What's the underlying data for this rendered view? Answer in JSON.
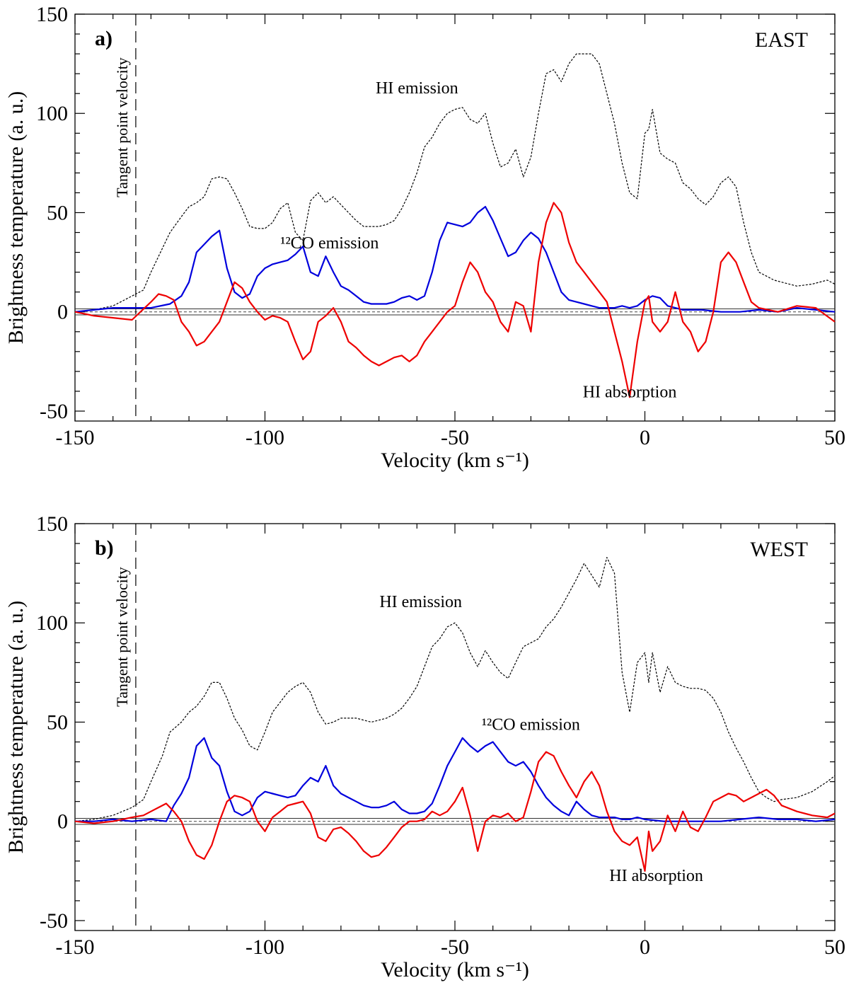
{
  "chart_data": [
    {
      "type": "line",
      "panel": "a)",
      "region": "EAST",
      "xlabel": "Velocity (km s⁻¹)",
      "ylabel": "Brightness temperature (a. u.)",
      "xlim": [
        -150,
        50
      ],
      "ylim": [
        -55,
        150
      ],
      "xticks": [
        -150,
        -100,
        -50,
        0,
        50
      ],
      "yticks": [
        -50,
        0,
        50,
        100,
        150
      ],
      "tangent_velocity": -134,
      "tangent_label": "Tangent point velocity",
      "noise_band": 1.5,
      "series": [
        {
          "name": "HI emission",
          "color": "#000000",
          "style": "dotted",
          "label_at": [
            -60,
            110
          ],
          "x": [
            -150,
            -145,
            -140,
            -135,
            -132,
            -130,
            -127,
            -125,
            -122,
            -120,
            -118,
            -116,
            -114,
            -112,
            -110,
            -108,
            -106,
            -104,
            -102,
            -100,
            -98,
            -96,
            -94,
            -92,
            -90,
            -88,
            -86,
            -84,
            -82,
            -80,
            -78,
            -76,
            -74,
            -72,
            -70,
            -68,
            -66,
            -64,
            -62,
            -60,
            -58,
            -56,
            -54,
            -52,
            -50,
            -48,
            -46,
            -44,
            -42,
            -40,
            -38,
            -36,
            -34,
            -32,
            -30,
            -28,
            -26,
            -24,
            -22,
            -20,
            -18,
            -16,
            -14,
            -12,
            -10,
            -8,
            -6,
            -4,
            -2,
            0,
            1,
            2,
            4,
            6,
            8,
            10,
            12,
            14,
            16,
            18,
            20,
            22,
            24,
            26,
            28,
            30,
            32,
            34,
            36,
            40,
            44,
            48,
            50
          ],
          "y": [
            0,
            1,
            3,
            8,
            11,
            20,
            32,
            40,
            48,
            53,
            55,
            58,
            67,
            68,
            67,
            60,
            52,
            43,
            42,
            42,
            45,
            52,
            55,
            40,
            36,
            56,
            60,
            55,
            58,
            54,
            50,
            46,
            43,
            43,
            43,
            44,
            46,
            52,
            60,
            70,
            83,
            88,
            95,
            100,
            102,
            103,
            97,
            95,
            100,
            85,
            73,
            75,
            82,
            68,
            78,
            100,
            120,
            122,
            116,
            125,
            130,
            130,
            130,
            125,
            110,
            95,
            75,
            60,
            57,
            90,
            92,
            102,
            80,
            77,
            75,
            65,
            62,
            57,
            54,
            58,
            65,
            68,
            63,
            45,
            30,
            20,
            18,
            16,
            15,
            13,
            14,
            16,
            14
          ]
        },
        {
          "name": "¹²CO emission",
          "color": "#0000dd",
          "style": "solid",
          "label_at": [
            -83,
            32
          ],
          "x": [
            -150,
            -145,
            -140,
            -135,
            -130,
            -125,
            -122,
            -120,
            -118,
            -116,
            -114,
            -112,
            -110,
            -108,
            -106,
            -104,
            -102,
            -100,
            -98,
            -96,
            -94,
            -92,
            -90,
            -88,
            -86,
            -84,
            -82,
            -80,
            -78,
            -76,
            -74,
            -72,
            -70,
            -68,
            -66,
            -64,
            -62,
            -60,
            -58,
            -56,
            -54,
            -52,
            -50,
            -48,
            -46,
            -44,
            -42,
            -40,
            -38,
            -36,
            -34,
            -32,
            -30,
            -28,
            -26,
            -24,
            -22,
            -20,
            -18,
            -16,
            -14,
            -12,
            -10,
            -8,
            -6,
            -4,
            -2,
            0,
            2,
            4,
            6,
            8,
            10,
            15,
            20,
            25,
            30,
            35,
            40,
            45,
            50
          ],
          "y": [
            0,
            1,
            2,
            2,
            2,
            4,
            8,
            15,
            30,
            34,
            38,
            41,
            22,
            10,
            7,
            9,
            18,
            22,
            24,
            25,
            26,
            29,
            33,
            20,
            18,
            28,
            20,
            13,
            11,
            8,
            5,
            4,
            4,
            4,
            5,
            7,
            8,
            6,
            8,
            20,
            36,
            45,
            44,
            43,
            45,
            50,
            53,
            46,
            37,
            28,
            30,
            36,
            40,
            37,
            30,
            20,
            10,
            6,
            5,
            4,
            3,
            2,
            2,
            2,
            3,
            2,
            3,
            6,
            8,
            7,
            3,
            2,
            1,
            1,
            0,
            0,
            1,
            0,
            2,
            1,
            0
          ]
        },
        {
          "name": "HI absorption",
          "color": "#ee0000",
          "style": "solid",
          "label_at": [
            -4,
            -43
          ],
          "x": [
            -150,
            -145,
            -140,
            -135,
            -130,
            -128,
            -126,
            -124,
            -122,
            -120,
            -118,
            -116,
            -114,
            -112,
            -110,
            -108,
            -106,
            -104,
            -102,
            -100,
            -98,
            -96,
            -94,
            -92,
            -90,
            -88,
            -86,
            -84,
            -82,
            -80,
            -78,
            -76,
            -74,
            -72,
            -70,
            -68,
            -66,
            -64,
            -62,
            -60,
            -58,
            -56,
            -54,
            -52,
            -50,
            -48,
            -46,
            -44,
            -42,
            -40,
            -38,
            -36,
            -34,
            -32,
            -30,
            -28,
            -26,
            -24,
            -22,
            -20,
            -18,
            -16,
            -14,
            -12,
            -10,
            -8,
            -6,
            -4,
            -2,
            0,
            1,
            2,
            4,
            6,
            8,
            10,
            12,
            14,
            16,
            18,
            20,
            22,
            24,
            26,
            28,
            30,
            35,
            40,
            45,
            50
          ],
          "y": [
            0,
            -2,
            -3,
            -4,
            5,
            9,
            8,
            6,
            -5,
            -10,
            -17,
            -15,
            -10,
            -5,
            5,
            15,
            12,
            5,
            0,
            -4,
            -2,
            -3,
            -5,
            -15,
            -24,
            -20,
            -5,
            -2,
            2,
            -5,
            -15,
            -18,
            -22,
            -25,
            -27,
            -25,
            -23,
            -22,
            -25,
            -22,
            -15,
            -10,
            -5,
            0,
            3,
            15,
            25,
            20,
            10,
            5,
            -5,
            -10,
            5,
            3,
            -10,
            25,
            45,
            55,
            50,
            35,
            25,
            20,
            15,
            10,
            5,
            -10,
            -25,
            -43,
            -15,
            5,
            8,
            -5,
            -10,
            -5,
            10,
            -5,
            -10,
            -20,
            -15,
            0,
            25,
            30,
            25,
            15,
            5,
            2,
            0,
            3,
            2,
            -5
          ]
        }
      ]
    },
    {
      "type": "line",
      "panel": "b)",
      "region": "WEST",
      "xlabel": "Velocity (km s⁻¹)",
      "ylabel": "Brightness temperature (a. u.)",
      "xlim": [
        -150,
        50
      ],
      "ylim": [
        -55,
        150
      ],
      "xticks": [
        -150,
        -100,
        -50,
        0,
        50
      ],
      "yticks": [
        -50,
        0,
        50,
        100,
        150
      ],
      "tangent_velocity": -134,
      "tangent_label": "Tangent point velocity",
      "noise_band": 1.5,
      "series": [
        {
          "name": "HI emission",
          "color": "#000000",
          "style": "dotted",
          "label_at": [
            -59,
            108
          ],
          "x": [
            -150,
            -145,
            -140,
            -135,
            -132,
            -130,
            -127,
            -125,
            -122,
            -120,
            -118,
            -116,
            -114,
            -112,
            -110,
            -108,
            -106,
            -104,
            -102,
            -100,
            -98,
            -96,
            -94,
            -92,
            -90,
            -88,
            -86,
            -84,
            -82,
            -80,
            -78,
            -76,
            -74,
            -72,
            -70,
            -68,
            -66,
            -64,
            -62,
            -60,
            -58,
            -56,
            -54,
            -52,
            -50,
            -48,
            -46,
            -44,
            -42,
            -40,
            -38,
            -36,
            -34,
            -32,
            -30,
            -28,
            -26,
            -24,
            -22,
            -20,
            -18,
            -16,
            -14,
            -12,
            -10,
            -8,
            -6,
            -4,
            -2,
            0,
            1,
            2,
            4,
            6,
            8,
            10,
            12,
            14,
            16,
            18,
            20,
            22,
            24,
            26,
            28,
            30,
            32,
            34,
            36,
            40,
            44,
            48,
            50
          ],
          "y": [
            0,
            1,
            3,
            7,
            11,
            20,
            33,
            45,
            50,
            55,
            58,
            63,
            70,
            70,
            62,
            52,
            46,
            38,
            36,
            45,
            55,
            60,
            65,
            68,
            70,
            65,
            55,
            49,
            50,
            52,
            52,
            52,
            51,
            50,
            51,
            52,
            54,
            57,
            62,
            68,
            78,
            88,
            92,
            98,
            100,
            95,
            85,
            78,
            86,
            80,
            75,
            72,
            80,
            88,
            90,
            92,
            98,
            102,
            108,
            115,
            122,
            130,
            124,
            118,
            133,
            125,
            75,
            55,
            80,
            85,
            70,
            85,
            65,
            78,
            70,
            68,
            67,
            67,
            66,
            62,
            55,
            45,
            37,
            30,
            22,
            15,
            12,
            10,
            11,
            12,
            15,
            20,
            23
          ]
        },
        {
          "name": "¹²CO emission",
          "color": "#0000dd",
          "style": "solid",
          "label_at": [
            -30,
            46
          ],
          "x": [
            -150,
            -145,
            -140,
            -135,
            -130,
            -126,
            -124,
            -122,
            -120,
            -118,
            -116,
            -114,
            -112,
            -110,
            -108,
            -106,
            -104,
            -102,
            -100,
            -98,
            -96,
            -94,
            -92,
            -90,
            -88,
            -86,
            -84,
            -82,
            -80,
            -78,
            -76,
            -74,
            -72,
            -70,
            -68,
            -66,
            -64,
            -62,
            -60,
            -58,
            -56,
            -54,
            -52,
            -50,
            -48,
            -46,
            -44,
            -42,
            -40,
            -38,
            -36,
            -34,
            -32,
            -30,
            -28,
            -26,
            -24,
            -22,
            -20,
            -18,
            -16,
            -14,
            -12,
            -10,
            -8,
            -6,
            -4,
            -2,
            0,
            5,
            10,
            15,
            20,
            25,
            30,
            35,
            40,
            45,
            50
          ],
          "y": [
            0,
            0,
            1,
            0,
            1,
            0,
            8,
            14,
            22,
            38,
            42,
            32,
            28,
            15,
            5,
            3,
            5,
            12,
            15,
            14,
            13,
            12,
            13,
            18,
            22,
            20,
            28,
            18,
            14,
            12,
            10,
            8,
            7,
            7,
            8,
            10,
            6,
            4,
            4,
            5,
            9,
            18,
            28,
            35,
            42,
            38,
            35,
            38,
            40,
            35,
            30,
            28,
            30,
            25,
            18,
            12,
            8,
            5,
            3,
            10,
            6,
            3,
            2,
            2,
            2,
            1,
            1,
            2,
            1,
            0,
            0,
            0,
            0,
            1,
            2,
            1,
            1,
            0,
            1
          ]
        },
        {
          "name": "HI absorption",
          "color": "#ee0000",
          "style": "solid",
          "label_at": [
            3,
            -30
          ],
          "x": [
            -150,
            -145,
            -140,
            -135,
            -132,
            -130,
            -128,
            -126,
            -124,
            -122,
            -120,
            -118,
            -116,
            -114,
            -112,
            -110,
            -108,
            -106,
            -104,
            -102,
            -100,
            -98,
            -96,
            -94,
            -92,
            -90,
            -88,
            -86,
            -84,
            -82,
            -80,
            -78,
            -76,
            -74,
            -72,
            -70,
            -68,
            -66,
            -64,
            -62,
            -60,
            -58,
            -56,
            -54,
            -52,
            -50,
            -48,
            -46,
            -44,
            -42,
            -40,
            -38,
            -36,
            -34,
            -32,
            -30,
            -28,
            -26,
            -24,
            -22,
            -20,
            -18,
            -16,
            -14,
            -12,
            -10,
            -8,
            -6,
            -4,
            -2,
            0,
            1,
            2,
            4,
            6,
            8,
            10,
            12,
            14,
            16,
            18,
            20,
            22,
            24,
            26,
            28,
            30,
            32,
            34,
            36,
            40,
            44,
            48,
            50
          ],
          "y": [
            0,
            -1,
            0,
            2,
            3,
            5,
            7,
            9,
            5,
            0,
            -10,
            -17,
            -19,
            -12,
            0,
            10,
            13,
            12,
            10,
            0,
            -5,
            2,
            5,
            8,
            9,
            10,
            4,
            -8,
            -10,
            -4,
            -3,
            -6,
            -10,
            -15,
            -18,
            -17,
            -13,
            -8,
            -3,
            0,
            0,
            1,
            5,
            3,
            5,
            10,
            17,
            3,
            -15,
            0,
            3,
            2,
            4,
            0,
            2,
            15,
            30,
            35,
            33,
            25,
            18,
            12,
            20,
            25,
            18,
            5,
            -5,
            -10,
            -12,
            -8,
            -25,
            -5,
            -15,
            -10,
            3,
            -5,
            5,
            -3,
            -5,
            2,
            10,
            12,
            14,
            13,
            10,
            12,
            14,
            16,
            13,
            8,
            5,
            3,
            2,
            4
          ]
        }
      ]
    }
  ]
}
